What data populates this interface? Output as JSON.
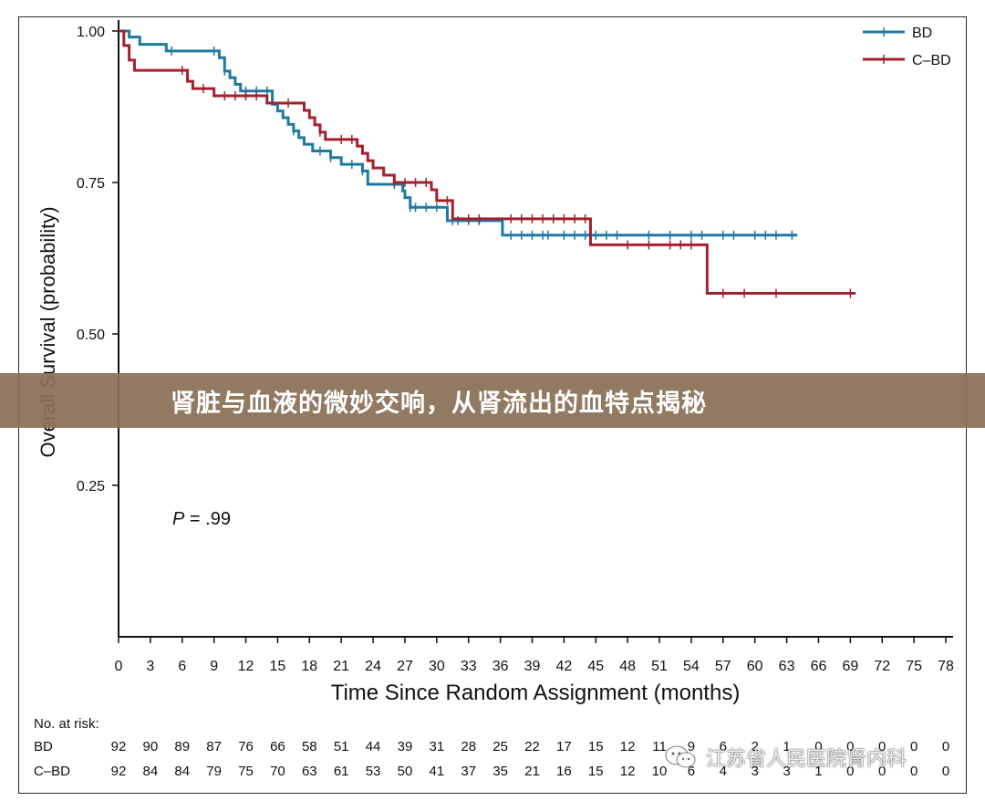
{
  "chart_data": {
    "type": "line",
    "xlabel": "Time Since Random Assignment (months)",
    "ylabel": "Overall Survival (probability)",
    "xticks": [
      0,
      3,
      6,
      9,
      12,
      15,
      18,
      21,
      24,
      27,
      30,
      33,
      36,
      39,
      42,
      45,
      48,
      51,
      54,
      57,
      60,
      63,
      66,
      69,
      72,
      75,
      78
    ],
    "yticks": [
      0.25,
      0.5,
      0.75,
      1.0
    ],
    "ytick_labels": [
      "0.25",
      "0.50",
      "0.75",
      "1.00"
    ],
    "xlim": [
      0,
      78
    ],
    "ylim": [
      0,
      1.0
    ],
    "annotation": {
      "italic": "P",
      "text": " = .99"
    },
    "legend_position": "top-right",
    "series": [
      {
        "name": "BD",
        "color": "#1e7aa0",
        "steps": [
          [
            0,
            1.0
          ],
          [
            1,
            0.99
          ],
          [
            2,
            0.978
          ],
          [
            4.5,
            0.967
          ],
          [
            9.5,
            0.956
          ],
          [
            10,
            0.934
          ],
          [
            10.5,
            0.923
          ],
          [
            11,
            0.912
          ],
          [
            11.5,
            0.901
          ],
          [
            14.5,
            0.879
          ],
          [
            15,
            0.868
          ],
          [
            15.5,
            0.857
          ],
          [
            16,
            0.846
          ],
          [
            16.5,
            0.835
          ],
          [
            17,
            0.824
          ],
          [
            17.5,
            0.813
          ],
          [
            18.3,
            0.802
          ],
          [
            20,
            0.791
          ],
          [
            21,
            0.78
          ],
          [
            23,
            0.769
          ],
          [
            23.5,
            0.747
          ],
          [
            26.8,
            0.736
          ],
          [
            27,
            0.725
          ],
          [
            27.5,
            0.709
          ],
          [
            31,
            0.687
          ],
          [
            36.2,
            0.663
          ],
          [
            64,
            0.663
          ]
        ],
        "censor_x": [
          5,
          9,
          10,
          12,
          13,
          14,
          16.5,
          19,
          20,
          22,
          23,
          26,
          27.5,
          28,
          29,
          30,
          31.5,
          32,
          33,
          34,
          37,
          38,
          39,
          40,
          40.5,
          42,
          43,
          44,
          45,
          46,
          47,
          50,
          52,
          54,
          55,
          57,
          58,
          60,
          61,
          62,
          63.5
        ]
      },
      {
        "name": "C–BD",
        "color": "#a3212f",
        "steps": [
          [
            0,
            1.0
          ],
          [
            0.5,
            0.976
          ],
          [
            1,
            0.952
          ],
          [
            1.5,
            0.935
          ],
          [
            6.5,
            0.917
          ],
          [
            7,
            0.905
          ],
          [
            9,
            0.893
          ],
          [
            14,
            0.881
          ],
          [
            17.5,
            0.869
          ],
          [
            18,
            0.857
          ],
          [
            18.5,
            0.845
          ],
          [
            19,
            0.833
          ],
          [
            19.5,
            0.821
          ],
          [
            22.5,
            0.81
          ],
          [
            23,
            0.798
          ],
          [
            23.5,
            0.786
          ],
          [
            24,
            0.774
          ],
          [
            25,
            0.762
          ],
          [
            26,
            0.75
          ],
          [
            29.5,
            0.738
          ],
          [
            30,
            0.72
          ],
          [
            31.5,
            0.69
          ],
          [
            44.5,
            0.647
          ],
          [
            55.5,
            0.567
          ],
          [
            69.5,
            0.567
          ]
        ],
        "censor_x": [
          6,
          8,
          10,
          11,
          12,
          13,
          16,
          19,
          21,
          22,
          26,
          27,
          28,
          29,
          31,
          33,
          34,
          37,
          38,
          39,
          40,
          41,
          42,
          43,
          44,
          48,
          50,
          52,
          53,
          54,
          57,
          59,
          62,
          69
        ]
      }
    ],
    "risk_table": {
      "title": "No. at risk:",
      "rows": [
        {
          "label": "BD",
          "values": [
            "92",
            "90",
            "89",
            "87",
            "76",
            "66",
            "58",
            "51",
            "44",
            "39",
            "31",
            "28",
            "25",
            "22",
            "17",
            "15",
            "12",
            "11",
            "9",
            "6",
            "2",
            "1",
            "0",
            "0",
            "0",
            "0",
            "0"
          ]
        },
        {
          "label": "C–BD",
          "values": [
            "92",
            "84",
            "84",
            "79",
            "75",
            "70",
            "63",
            "61",
            "53",
            "50",
            "41",
            "37",
            "35",
            "21",
            "16",
            "15",
            "12",
            "10",
            "6",
            "4",
            "3",
            "3",
            "1",
            "0",
            "0",
            "0",
            "0"
          ]
        }
      ]
    }
  },
  "banner": {
    "title": "肾脏与血液的微妙交响，从肾流出的血特点揭秘"
  },
  "watermark": {
    "text": "江苏省人民医院肾内科"
  },
  "icons": {
    "watermark_icon": "wechat-icon"
  }
}
